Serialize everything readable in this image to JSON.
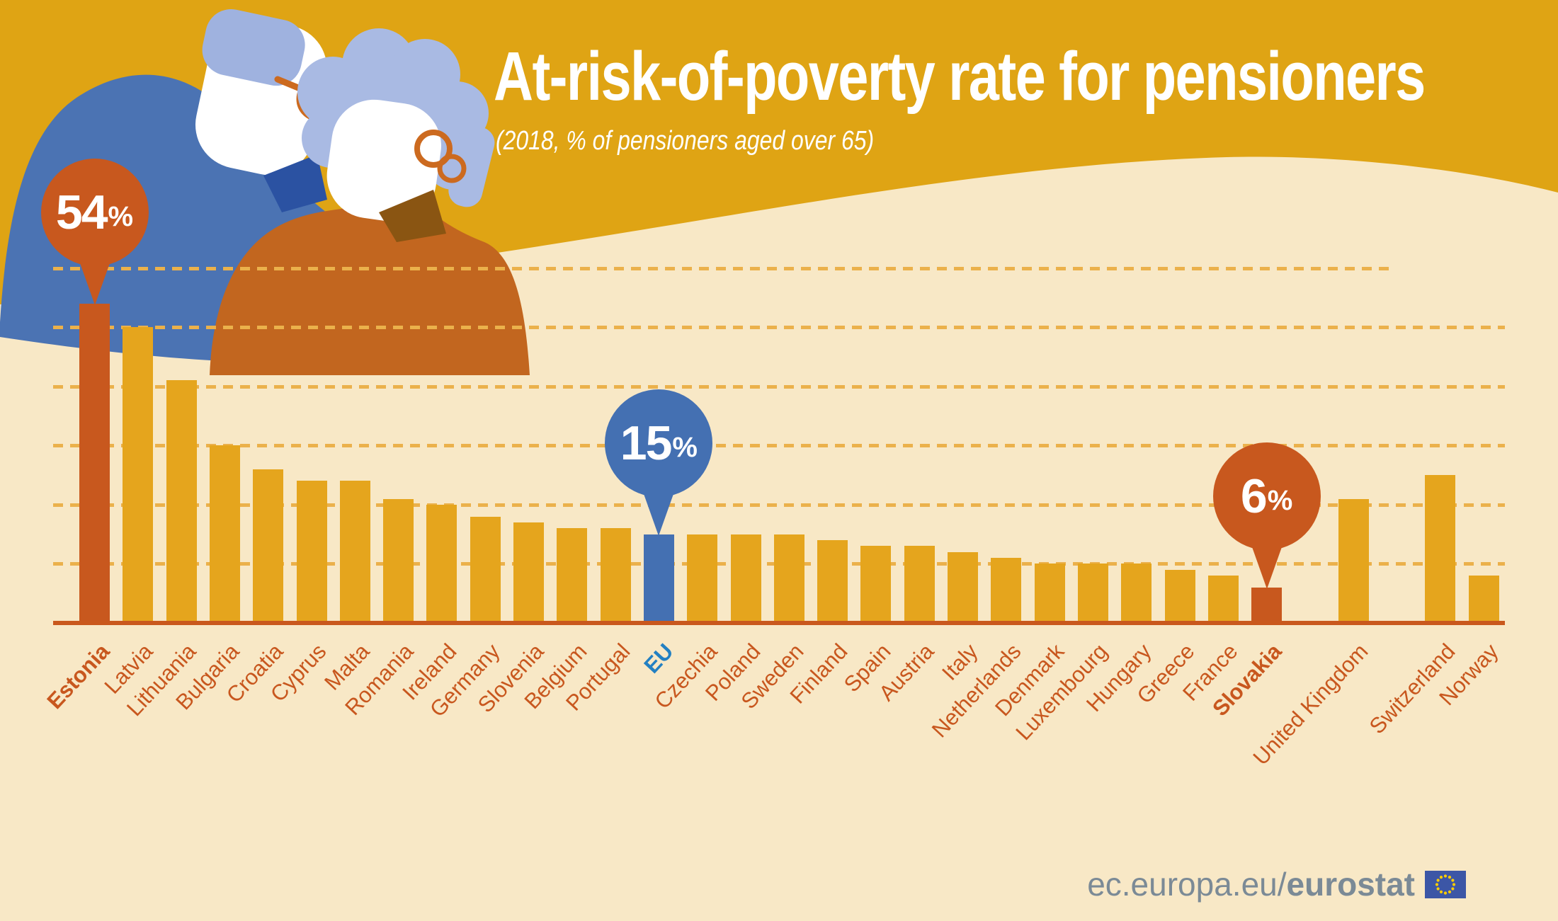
{
  "header": {
    "title": "At-risk-of-poverty rate for pensioners",
    "subtitle": "(2018, % of pensioners aged over 65)"
  },
  "callouts": {
    "estonia": {
      "value": "54",
      "unit": "%",
      "target": "Estonia"
    },
    "eu": {
      "value": "15",
      "unit": "%",
      "target": "EU"
    },
    "slovakia": {
      "value": "6",
      "unit": "%",
      "target": "Slovakia"
    }
  },
  "footer": {
    "url_prefix": "ec.europa.eu/",
    "url_bold": "eurostat",
    "flag_icon": "eu-flag-icon"
  },
  "colors": {
    "band_gold": "#DFA414",
    "background_cream": "#F8E8C6",
    "bar_gold": "#E5A51D",
    "accent_orange": "#C8581E",
    "axis_orange": "#C9581D",
    "bar_blue": "#4470B2",
    "eu_label_blue": "#2380C2",
    "grid_dash": "#EBB14B",
    "footer_gray": "#7B8A96",
    "illustration_blue": "#4B73B3",
    "illustration_periwinkle": "#A9BAE3",
    "illustration_burnt_orange": "#C2661F"
  },
  "chart_data": {
    "type": "bar",
    "title": "At-risk-of-poverty rate for pensioners",
    "subtitle": "(2018, % of pensioners aged over 65)",
    "unit": "%",
    "ylim": [
      0,
      60
    ],
    "gridlines": [
      10,
      20,
      30,
      40,
      50,
      60
    ],
    "grid_style": "dashed",
    "legend": "none",
    "annotations": [
      {
        "label": "54%",
        "target": "Estonia"
      },
      {
        "label": "15%",
        "target": "EU"
      },
      {
        "label": "6%",
        "target": "Slovakia"
      }
    ],
    "bars": [
      {
        "label": "Estonia",
        "value": 54,
        "slot": 0,
        "color": "orange",
        "bold": true
      },
      {
        "label": "Latvia",
        "value": 50,
        "slot": 1,
        "color": "gold"
      },
      {
        "label": "Lithuania",
        "value": 41,
        "slot": 2,
        "color": "gold"
      },
      {
        "label": "Bulgaria",
        "value": 30,
        "slot": 3,
        "color": "gold"
      },
      {
        "label": "Croatia",
        "value": 26,
        "slot": 4,
        "color": "gold"
      },
      {
        "label": "Cyprus",
        "value": 24,
        "slot": 5,
        "color": "gold"
      },
      {
        "label": "Malta",
        "value": 24,
        "slot": 6,
        "color": "gold"
      },
      {
        "label": "Romania",
        "value": 21,
        "slot": 7,
        "color": "gold"
      },
      {
        "label": "Ireland",
        "value": 20,
        "slot": 8,
        "color": "gold"
      },
      {
        "label": "Germany",
        "value": 18,
        "slot": 9,
        "color": "gold"
      },
      {
        "label": "Slovenia",
        "value": 17,
        "slot": 10,
        "color": "gold"
      },
      {
        "label": "Belgium",
        "value": 16,
        "slot": 11,
        "color": "gold"
      },
      {
        "label": "Portugal",
        "value": 16,
        "slot": 12,
        "color": "gold"
      },
      {
        "label": "EU",
        "value": 15,
        "slot": 13,
        "color": "blue",
        "bold": true
      },
      {
        "label": "Czechia",
        "value": 15,
        "slot": 14,
        "color": "gold"
      },
      {
        "label": "Poland",
        "value": 15,
        "slot": 15,
        "color": "gold"
      },
      {
        "label": "Sweden",
        "value": 15,
        "slot": 16,
        "color": "gold"
      },
      {
        "label": "Finland",
        "value": 14,
        "slot": 17,
        "color": "gold"
      },
      {
        "label": "Spain",
        "value": 13,
        "slot": 18,
        "color": "gold"
      },
      {
        "label": "Austria",
        "value": 13,
        "slot": 19,
        "color": "gold"
      },
      {
        "label": "Italy",
        "value": 12,
        "slot": 20,
        "color": "gold"
      },
      {
        "label": "Netherlands",
        "value": 11,
        "slot": 21,
        "color": "gold"
      },
      {
        "label": "Denmark",
        "value": 10,
        "slot": 22,
        "color": "gold"
      },
      {
        "label": "Luxembourg",
        "value": 10,
        "slot": 23,
        "color": "gold"
      },
      {
        "label": "Hungary",
        "value": 10,
        "slot": 24,
        "color": "gold"
      },
      {
        "label": "Greece",
        "value": 9,
        "slot": 25,
        "color": "gold"
      },
      {
        "label": "France",
        "value": 8,
        "slot": 26,
        "color": "gold"
      },
      {
        "label": "Slovakia",
        "value": 6,
        "slot": 27,
        "color": "orange",
        "bold": true
      },
      {
        "label": "United Kingdom",
        "value": 21,
        "slot": 29,
        "color": "gold"
      },
      {
        "label": "Switzerland",
        "value": 25,
        "slot": 31,
        "color": "gold"
      },
      {
        "label": "Norway",
        "value": 8,
        "slot": 32,
        "color": "gold"
      }
    ]
  }
}
